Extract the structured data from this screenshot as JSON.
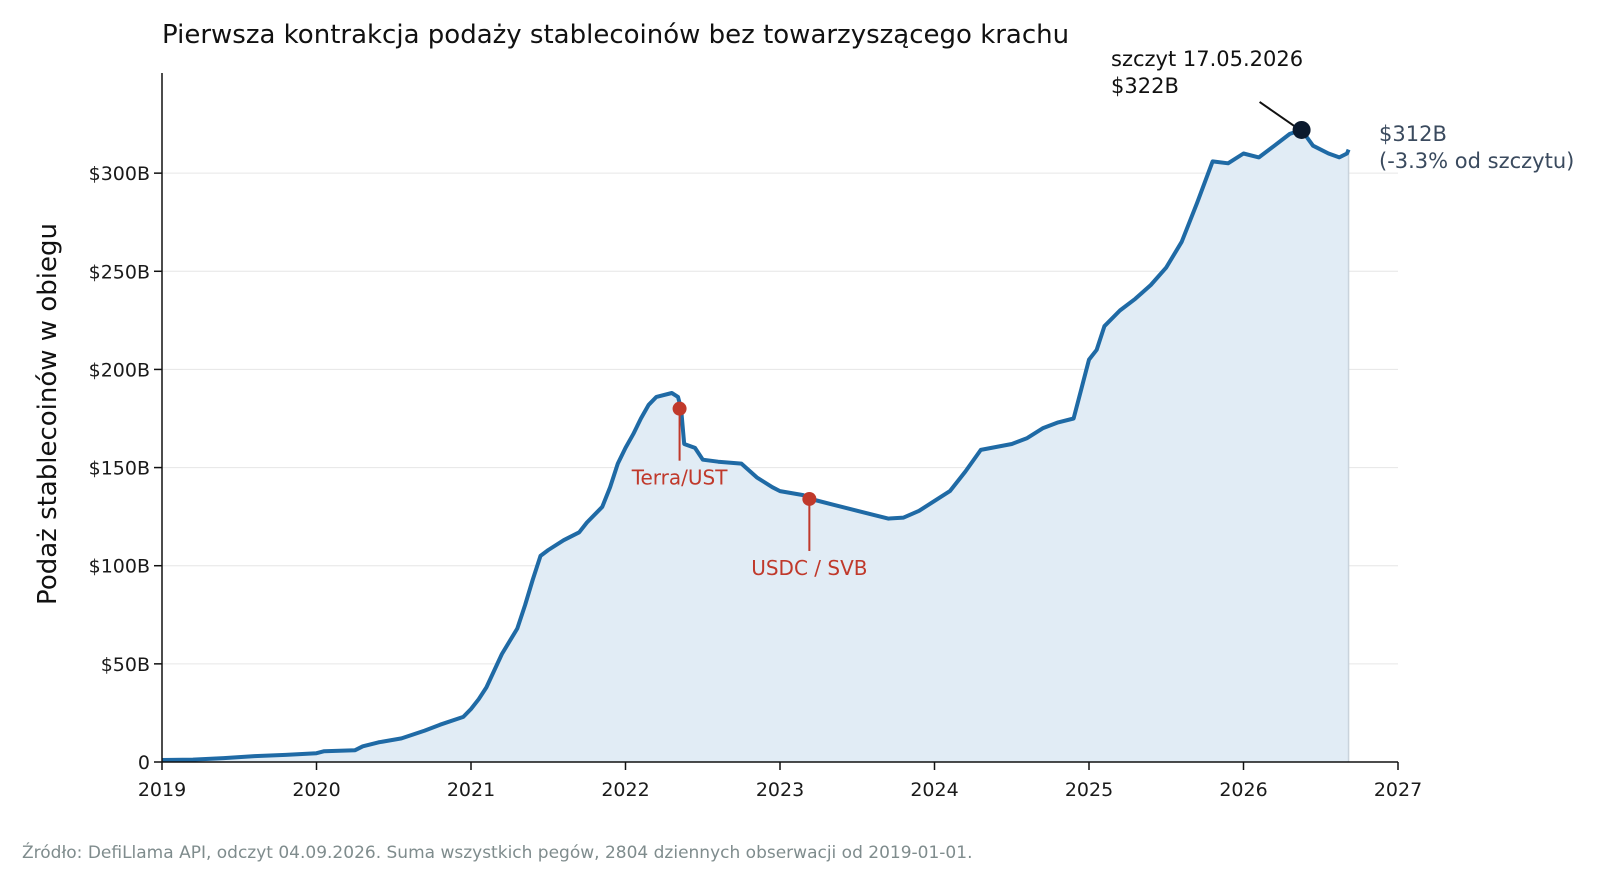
{
  "chart_data": {
    "type": "area",
    "title": "Pierwsza kontrakcja podaży stablecoinów bez towarzyszącego krachu",
    "ylabel": "Podaż stablecoinów w obiegu",
    "xlabel": "",
    "xlim": [
      2019,
      2027
    ],
    "ylim": [
      0,
      350
    ],
    "x_ticks": [
      "2019",
      "2020",
      "2021",
      "2022",
      "2023",
      "2024",
      "2025",
      "2026",
      "2027"
    ],
    "y_ticks": [
      {
        "value": 0,
        "label": "0"
      },
      {
        "value": 50,
        "label": "$50B"
      },
      {
        "value": 100,
        "label": "$100B"
      },
      {
        "value": 150,
        "label": "$150B"
      },
      {
        "value": 200,
        "label": "$200B"
      },
      {
        "value": 250,
        "label": "$250B"
      },
      {
        "value": 300,
        "label": "$300B"
      }
    ],
    "grid": "horizontal",
    "line_color": "#1f6aa5",
    "fill_color": "#e1ecf5",
    "series": [
      {
        "values": [
          [
            2019.0,
            1.0
          ],
          [
            2019.2,
            1.2
          ],
          [
            2019.4,
            2.0
          ],
          [
            2019.6,
            3.0
          ],
          [
            2019.8,
            3.6
          ],
          [
            2020.0,
            4.5
          ],
          [
            2020.05,
            5.5
          ],
          [
            2020.25,
            6.0
          ],
          [
            2020.3,
            8.0
          ],
          [
            2020.4,
            10.0
          ],
          [
            2020.55,
            12.0
          ],
          [
            2020.7,
            16.0
          ],
          [
            2020.8,
            19.0
          ],
          [
            2020.95,
            23.0
          ],
          [
            2021.0,
            27.0
          ],
          [
            2021.05,
            32.0
          ],
          [
            2021.1,
            38.0
          ],
          [
            2021.2,
            55.0
          ],
          [
            2021.3,
            68.0
          ],
          [
            2021.35,
            80.0
          ],
          [
            2021.4,
            93.0
          ],
          [
            2021.45,
            105.0
          ],
          [
            2021.5,
            108.0
          ],
          [
            2021.6,
            113.0
          ],
          [
            2021.7,
            117.0
          ],
          [
            2021.75,
            122.0
          ],
          [
            2021.85,
            130.0
          ],
          [
            2021.9,
            140.0
          ],
          [
            2021.95,
            152.0
          ],
          [
            2022.0,
            160.0
          ],
          [
            2022.05,
            167.0
          ],
          [
            2022.1,
            175.0
          ],
          [
            2022.15,
            182.0
          ],
          [
            2022.2,
            186.0
          ],
          [
            2022.3,
            188.0
          ],
          [
            2022.34,
            186.0
          ],
          [
            2022.36,
            180.0
          ],
          [
            2022.38,
            162.0
          ],
          [
            2022.45,
            160.0
          ],
          [
            2022.5,
            154.0
          ],
          [
            2022.6,
            153.0
          ],
          [
            2022.75,
            152.0
          ],
          [
            2022.85,
            145.0
          ],
          [
            2022.95,
            140.0
          ],
          [
            2023.0,
            138.0
          ],
          [
            2023.15,
            136.0
          ],
          [
            2023.2,
            134.0
          ],
          [
            2023.35,
            131.0
          ],
          [
            2023.5,
            128.0
          ],
          [
            2023.6,
            126.0
          ],
          [
            2023.7,
            124.0
          ],
          [
            2023.8,
            124.5
          ],
          [
            2023.9,
            128.0
          ],
          [
            2024.0,
            133.0
          ],
          [
            2024.1,
            138.0
          ],
          [
            2024.2,
            148.0
          ],
          [
            2024.3,
            159.0
          ],
          [
            2024.5,
            162.0
          ],
          [
            2024.6,
            165.0
          ],
          [
            2024.7,
            170.0
          ],
          [
            2024.8,
            173.0
          ],
          [
            2024.9,
            175.0
          ],
          [
            2024.95,
            190.0
          ],
          [
            2025.0,
            205.0
          ],
          [
            2025.05,
            210.0
          ],
          [
            2025.1,
            222.0
          ],
          [
            2025.2,
            230.0
          ],
          [
            2025.3,
            236.0
          ],
          [
            2025.4,
            243.0
          ],
          [
            2025.5,
            252.0
          ],
          [
            2025.6,
            265.0
          ],
          [
            2025.7,
            285.0
          ],
          [
            2025.8,
            306.0
          ],
          [
            2025.9,
            305.0
          ],
          [
            2026.0,
            310.0
          ],
          [
            2026.1,
            308.0
          ],
          [
            2026.2,
            314.0
          ],
          [
            2026.3,
            320.0
          ],
          [
            2026.376,
            322.0
          ],
          [
            2026.45,
            314.0
          ],
          [
            2026.55,
            310.0
          ],
          [
            2026.62,
            308.0
          ],
          [
            2026.67,
            310.0
          ],
          [
            2026.68,
            312.0
          ]
        ]
      }
    ],
    "annotations": [
      {
        "name": "terra",
        "label": "Terra/UST",
        "x": 2022.35,
        "y": 180,
        "color": "#c0392b"
      },
      {
        "name": "usdc",
        "label": "USDC / SVB",
        "x": 2023.19,
        "y": 134,
        "color": "#c0392b"
      },
      {
        "name": "peak",
        "label_line1": "szczyt 17.05.2026",
        "label_line2": "$322B",
        "x": 2026.376,
        "y": 322,
        "color": "#0b1a2e"
      },
      {
        "name": "last",
        "label_line1": "$312B",
        "label_line2": "(-3.3% od szczytu)",
        "x": 2026.68,
        "y": 312
      }
    ],
    "source": "Źródło: DefiLlama API, odczyt 04.09.2026. Suma wszystkich pegów, 2804 dziennych obserwacji od 2019-01-01."
  }
}
